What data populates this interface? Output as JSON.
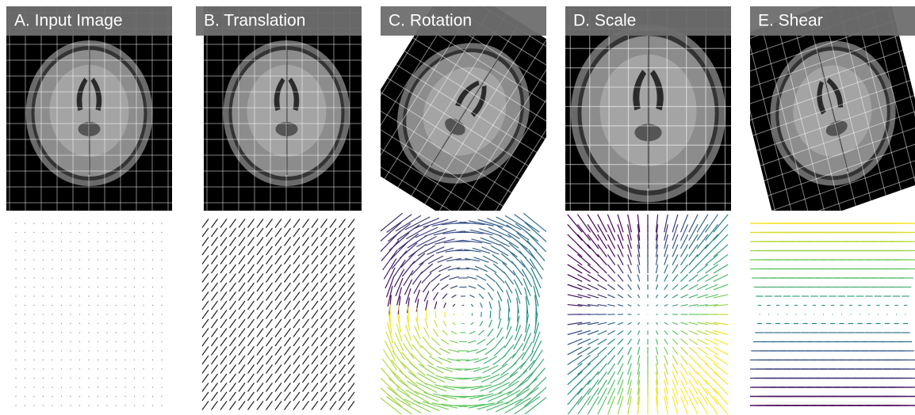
{
  "panels": [
    {
      "label": "A. Input Image"
    },
    {
      "label": "B. Translation"
    },
    {
      "label": "C. Rotation"
    },
    {
      "label": "D. Scale"
    },
    {
      "label": "E. Shear"
    }
  ]
}
